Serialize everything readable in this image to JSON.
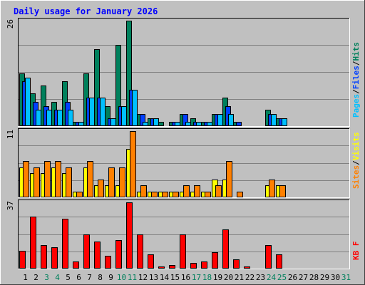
{
  "title": "Daily usage for January 2026",
  "colors": {
    "background": "#c0c0c0",
    "plot": "#c0c0c0",
    "gridline": "#808080",
    "title": "#0000ff",
    "hits": "#00805c",
    "files": "#0040ff",
    "pages": "#00c0ff",
    "visits": "#ffff00",
    "sites": "#ff8000",
    "kbytes": "#ff0000",
    "weekday_label": "#000000",
    "weekend_label": "#00805c"
  },
  "chart_data": [
    {
      "type": "bar",
      "panel": "top",
      "max_label": "26",
      "ylim": [
        0,
        26
      ],
      "legend": [
        {
          "key": "pages",
          "label": "Pages"
        },
        {
          "key": "files",
          "label": "Files"
        },
        {
          "key": "hits",
          "label": "Hits"
        }
      ],
      "legend_separator": "/",
      "categories": [
        "1",
        "2",
        "3",
        "4",
        "5",
        "6",
        "7",
        "8",
        "9",
        "10",
        "11",
        "12",
        "13",
        "14",
        "15",
        "16",
        "17",
        "18",
        "19",
        "20",
        "21",
        "22",
        "23",
        "24",
        "25",
        "26",
        "27",
        "28",
        "29",
        "30",
        "31"
      ],
      "series": [
        {
          "name": "Hits",
          "key": "hits",
          "values": [
            13,
            8,
            10,
            6,
            11,
            1,
            13,
            19,
            5,
            20,
            26,
            3,
            2,
            1,
            1,
            3,
            2,
            1,
            3,
            7,
            1,
            0,
            0,
            4,
            2,
            0,
            0,
            0,
            0,
            0,
            0
          ]
        },
        {
          "name": "Files",
          "key": "files",
          "values": [
            11,
            6,
            5,
            4,
            6,
            1,
            7,
            7,
            2,
            5,
            9,
            3,
            2,
            0,
            1,
            3,
            1,
            1,
            3,
            5,
            1,
            0,
            0,
            3,
            2,
            0,
            0,
            0,
            0,
            0,
            0
          ]
        },
        {
          "name": "Pages",
          "key": "pages",
          "values": [
            12,
            4,
            4,
            4,
            4,
            1,
            7,
            7,
            2,
            5,
            9,
            1,
            2,
            0,
            1,
            1,
            1,
            1,
            3,
            3,
            0,
            0,
            0,
            3,
            2,
            0,
            0,
            0,
            0,
            0,
            0
          ]
        }
      ]
    },
    {
      "type": "bar",
      "panel": "middle",
      "max_label": "11",
      "ylim": [
        0,
        11
      ],
      "legend": [
        {
          "key": "sites",
          "label": "Sites"
        },
        {
          "key": "visits",
          "label": "Visits"
        }
      ],
      "legend_separator": "/",
      "categories": [
        "1",
        "2",
        "3",
        "4",
        "5",
        "6",
        "7",
        "8",
        "9",
        "10",
        "11",
        "12",
        "13",
        "14",
        "15",
        "16",
        "17",
        "18",
        "19",
        "20",
        "21",
        "22",
        "23",
        "24",
        "25",
        "26",
        "27",
        "28",
        "29",
        "30",
        "31"
      ],
      "series": [
        {
          "name": "Visits",
          "key": "visits",
          "values": [
            5,
            4,
            4,
            5,
            4,
            1,
            5,
            2,
            2,
            2,
            8,
            1,
            1,
            1,
            1,
            1,
            1,
            1,
            3,
            3,
            0,
            0,
            0,
            2,
            2,
            0,
            0,
            0,
            0,
            0,
            0
          ]
        },
        {
          "name": "Sites",
          "key": "sites",
          "values": [
            6,
            5,
            6,
            6,
            5,
            1,
            6,
            3,
            5,
            5,
            11,
            2,
            1,
            1,
            1,
            2,
            2,
            1,
            2,
            6,
            1,
            0,
            0,
            3,
            2,
            0,
            0,
            0,
            0,
            0,
            0
          ]
        }
      ]
    },
    {
      "type": "bar",
      "panel": "bottom",
      "max_label": "37",
      "ylim": [
        0,
        37
      ],
      "legend": [
        {
          "key": "kbytes",
          "label": "KB F"
        }
      ],
      "legend_separator": "",
      "categories": [
        "1",
        "2",
        "3",
        "4",
        "5",
        "6",
        "7",
        "8",
        "9",
        "10",
        "11",
        "12",
        "13",
        "14",
        "15",
        "16",
        "17",
        "18",
        "19",
        "20",
        "21",
        "22",
        "23",
        "24",
        "25",
        "26",
        "27",
        "28",
        "29",
        "30",
        "31"
      ],
      "weekend_days": [
        "3",
        "4",
        "10",
        "11",
        "17",
        "18",
        "24",
        "25",
        "31"
      ],
      "series": [
        {
          "name": "KB F",
          "key": "kbytes",
          "values": [
            10,
            29,
            13,
            12,
            28,
            4,
            19,
            15,
            7,
            16,
            37,
            19,
            8,
            1,
            2,
            19,
            3,
            4,
            9,
            22,
            5,
            1,
            0,
            13,
            8,
            0,
            0,
            0,
            0,
            0,
            0
          ]
        }
      ]
    }
  ]
}
